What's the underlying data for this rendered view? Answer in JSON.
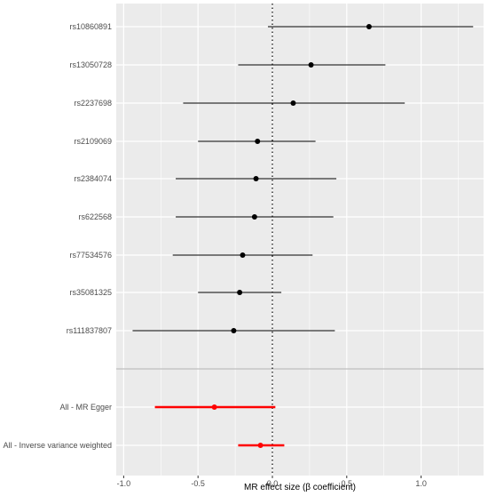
{
  "chart_data": {
    "type": "scatter",
    "subtype": "forest-plot",
    "title": "",
    "xlabel": "MR effect size (β coefficient)",
    "ylabel": "",
    "xlim": [
      -1.05,
      1.42
    ],
    "x_ticks": [
      -1.0,
      -0.5,
      0.0,
      0.5,
      1.0
    ],
    "x_tick_labels": [
      "-1.0",
      "-0.5",
      "0.0",
      "0.5",
      "1.0"
    ],
    "reference_line": {
      "x": 0,
      "style": "dotted"
    },
    "grid": true,
    "panel_background": "#ebebeb",
    "colors": {
      "snp": "#000000",
      "summary": "#ff0000",
      "separator": "#bebebe",
      "gridline": "#ffffff"
    },
    "rows": [
      {
        "label": "rs10860891",
        "estimate": 0.65,
        "lower": -0.03,
        "upper": 1.35,
        "group": "snp"
      },
      {
        "label": "rs13050728",
        "estimate": 0.26,
        "lower": -0.23,
        "upper": 0.76,
        "group": "snp"
      },
      {
        "label": "rs2237698",
        "estimate": 0.14,
        "lower": -0.6,
        "upper": 0.89,
        "group": "snp"
      },
      {
        "label": "rs2109069",
        "estimate": -0.1,
        "lower": -0.5,
        "upper": 0.29,
        "group": "snp"
      },
      {
        "label": "rs2384074",
        "estimate": -0.11,
        "lower": -0.65,
        "upper": 0.43,
        "group": "snp"
      },
      {
        "label": "rs622568",
        "estimate": -0.12,
        "lower": -0.65,
        "upper": 0.41,
        "group": "snp"
      },
      {
        "label": "rs77534576",
        "estimate": -0.2,
        "lower": -0.67,
        "upper": 0.27,
        "group": "snp"
      },
      {
        "label": "rs35081325",
        "estimate": -0.22,
        "lower": -0.5,
        "upper": 0.06,
        "group": "snp"
      },
      {
        "label": "rs111837807",
        "estimate": -0.26,
        "lower": -0.94,
        "upper": 0.42,
        "group": "snp"
      },
      {
        "label": "All - MR Egger",
        "estimate": -0.39,
        "lower": -0.79,
        "upper": 0.02,
        "group": "summary"
      },
      {
        "label": "All - Inverse variance weighted",
        "estimate": -0.08,
        "lower": -0.23,
        "upper": 0.08,
        "group": "summary"
      }
    ]
  }
}
